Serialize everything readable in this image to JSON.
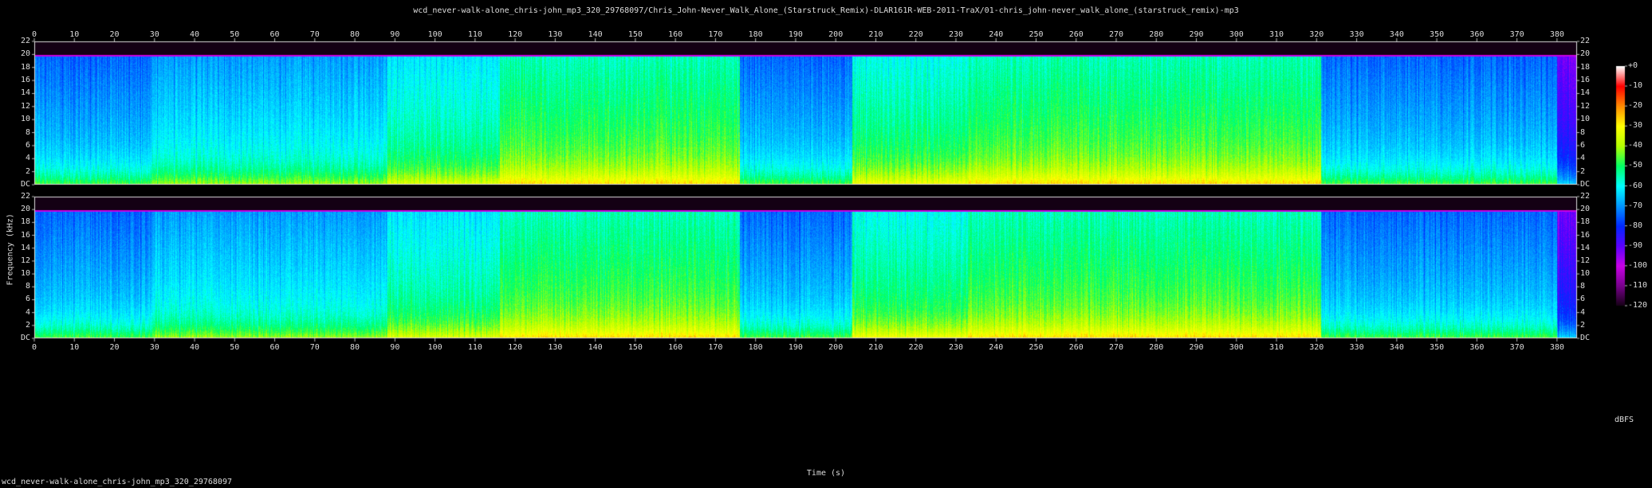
{
  "chart_data": {
    "type": "heatmap",
    "title": "wcd_never-walk-alone_chris-john_mp3_320_29768097/Chris_John-Never_Walk_Alone_(Starstruck_Remix)-DLAR161R-WEB-2011-TraX/01-chris_john-never_walk_alone_(starstruck_remix)-mp3",
    "footer": "wcd_never-walk-alone_chris-john_mp3_320_29768097",
    "xlabel": "Time (s)",
    "ylabel": "Frequency (kHz)",
    "x_ticks": [
      0,
      10,
      20,
      30,
      40,
      50,
      60,
      70,
      80,
      90,
      100,
      110,
      120,
      130,
      140,
      150,
      160,
      170,
      180,
      190,
      200,
      210,
      220,
      230,
      240,
      250,
      260,
      270,
      280,
      290,
      300,
      310,
      320,
      330,
      340,
      350,
      360,
      370,
      380
    ],
    "xlim": [
      0,
      385
    ],
    "y_ticks": [
      "DC",
      "2",
      "4",
      "6",
      "8",
      "10",
      "12",
      "14",
      "16",
      "18",
      "20",
      "22"
    ],
    "ylim": [
      0,
      22
    ],
    "channels": [
      "left",
      "right"
    ],
    "colorbar": {
      "unit": "dBFS",
      "ticks": [
        "+0",
        "-10",
        "-20",
        "-30",
        "-40",
        "-50",
        "-60",
        "-70",
        "-80",
        "-90",
        "-100",
        "-110",
        "-120"
      ],
      "range": [
        -120,
        0
      ]
    },
    "cutoff_khz": 20,
    "intensity_segments": [
      {
        "from": 0,
        "to": 29,
        "level": "low"
      },
      {
        "from": 29,
        "to": 88,
        "level": "low-mid"
      },
      {
        "from": 88,
        "to": 116,
        "level": "mid"
      },
      {
        "from": 116,
        "to": 176,
        "level": "high"
      },
      {
        "from": 176,
        "to": 204,
        "level": "low"
      },
      {
        "from": 204,
        "to": 233,
        "level": "mid-high"
      },
      {
        "from": 233,
        "to": 321,
        "level": "high"
      },
      {
        "from": 321,
        "to": 380,
        "level": "low"
      },
      {
        "from": 380,
        "to": 385,
        "level": "fade"
      }
    ]
  }
}
